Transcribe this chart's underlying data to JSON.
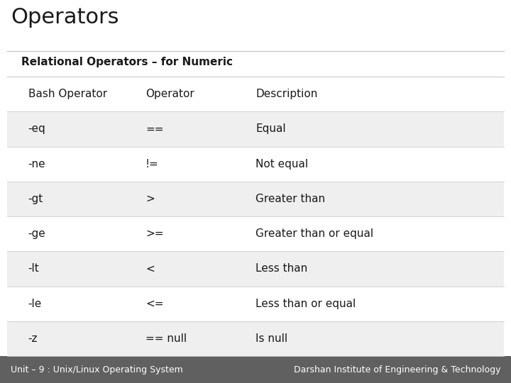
{
  "title": "Operators",
  "subtitle": "Relational Operators – for Numeric",
  "columns": [
    "Bash Operator",
    "Operator",
    "Description"
  ],
  "rows": [
    [
      "-eq",
      "==",
      "Equal"
    ],
    [
      "-ne",
      "!=",
      "Not equal"
    ],
    [
      "-gt",
      ">",
      "Greater than"
    ],
    [
      "-ge",
      ">=",
      "Greater than or equal"
    ],
    [
      "-lt",
      "<",
      "Less than"
    ],
    [
      "-le",
      "<=",
      "Less than or equal"
    ],
    [
      "-z",
      "== null",
      "Is null"
    ]
  ],
  "bg_color": "#ffffff",
  "header_row_bg": "#ffffff",
  "odd_row_bg": "#efefef",
  "even_row_bg": "#ffffff",
  "footer_bg": "#606060",
  "footer_left": "Unit – 9 : Unix/Linux Operating System",
  "footer_right": "Darshan Institute of Engineering & Technology",
  "title_fontsize": 22,
  "subtitle_fontsize": 11,
  "table_fontsize": 11,
  "footer_fontsize": 9,
  "col_starts": [
    0.055,
    0.285,
    0.5
  ]
}
